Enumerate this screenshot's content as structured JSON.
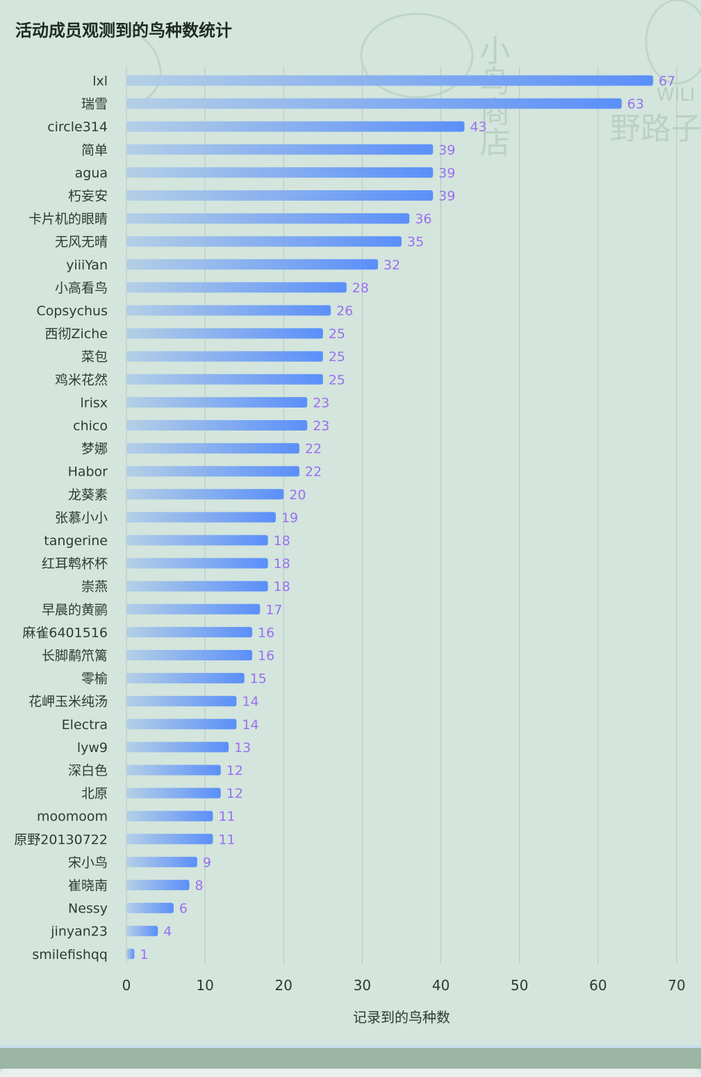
{
  "colors": {
    "background": "#d3e5dc",
    "bar_start": "#b4cfe6",
    "bar_end": "#5b8ff9",
    "value_label": "#9a6ff0",
    "gridline": "#b8c8c1",
    "text": "#2f3a35"
  },
  "watermark": {
    "vertical_text": "小鸟商店",
    "wild_text": "WILI",
    "road_text": "野路子"
  },
  "chart_data": {
    "type": "bar",
    "orientation": "horizontal",
    "title": "活动成员观测到的鸟种数统计",
    "xlabel": "记录到的鸟种数",
    "ylabel": "",
    "xlim": [
      0,
      70
    ],
    "xticks": [
      "0",
      "10",
      "20",
      "30",
      "40",
      "50",
      "60",
      "70"
    ],
    "grid": "vertical",
    "categories": [
      "lxl",
      "瑞雪",
      "circle314",
      "简单",
      "agua",
      "朽妄安",
      "卡片机的眼睛",
      "无风无晴",
      "yiiiYan",
      "小高看鸟",
      "Copsychus",
      "西彻Ziche",
      "菜包",
      "鸡米花然",
      "lrisx",
      "chico",
      "梦娜",
      "Habor",
      "龙葵素",
      "张慕小小",
      "tangerine",
      "红耳鹎杯杯",
      "崇燕",
      "早晨的黄鹂",
      "麻雀6401516",
      "长脚鹬笊篱",
      "零榆",
      "花岬玉米纯汤",
      "Electra",
      "lyw9",
      "深白色",
      "北原",
      "moomoom",
      "原野20130722",
      "宋小鸟",
      "崔晓南",
      "Nessy",
      "jinyan23",
      "smilefishqq"
    ],
    "values": [
      67,
      63,
      43,
      39,
      39,
      39,
      36,
      35,
      32,
      28,
      26,
      25,
      25,
      25,
      23,
      23,
      22,
      22,
      20,
      19,
      18,
      18,
      18,
      17,
      16,
      16,
      15,
      14,
      14,
      13,
      12,
      12,
      11,
      11,
      9,
      8,
      6,
      4,
      1
    ]
  }
}
